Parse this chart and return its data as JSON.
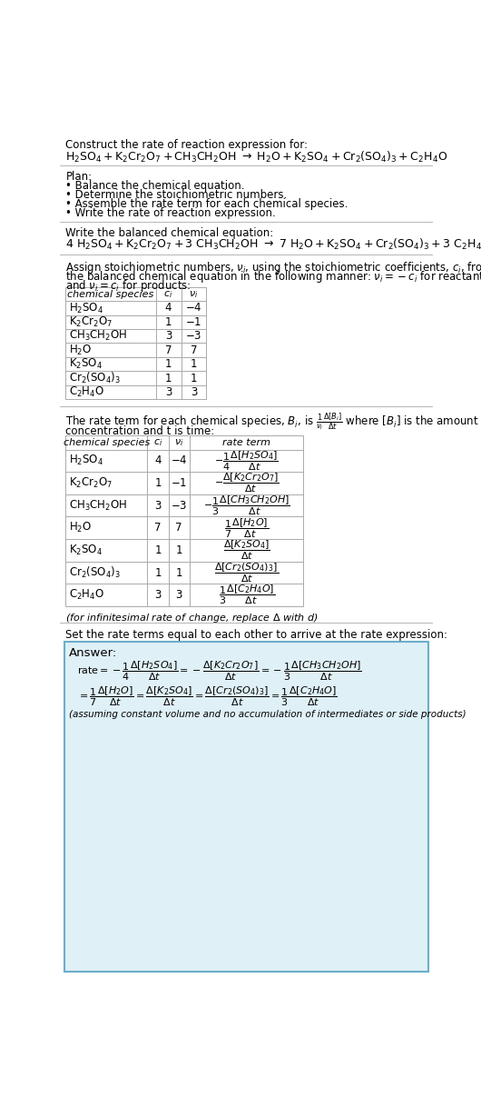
{
  "bg_color": "#ffffff",
  "text_color": "#000000",
  "table_border_color": "#aaaaaa",
  "answer_box_color": "#dff0f7",
  "answer_box_border": "#6aaec8",
  "font_size": 8.5,
  "plan_items": [
    "• Balance the chemical equation.",
    "• Determine the stoichiometric numbers.",
    "• Assemble the rate term for each chemical species.",
    "• Write the rate of reaction expression."
  ],
  "species_mathtext": [
    "$\\mathregular{H_2SO_4}$",
    "$\\mathregular{K_2Cr_2O_7}$",
    "$\\mathregular{CH_3CH_2OH}$",
    "$\\mathregular{H_2O}$",
    "$\\mathregular{K_2SO_4}$",
    "$\\mathregular{Cr_2(SO_4)_3}$",
    "$\\mathregular{C_2H_4O}$"
  ],
  "ci_vals": [
    "4",
    "1",
    "3",
    "7",
    "1",
    "1",
    "3"
  ],
  "vi_vals": [
    "-4",
    "-1",
    "-3",
    "7",
    "1",
    "1",
    "3"
  ],
  "infinitesimal_note": "(for infinitesimal rate of change, replace Δ with d)",
  "answer_note": "(assuming constant volume and no accumulation of intermediates or side products)"
}
